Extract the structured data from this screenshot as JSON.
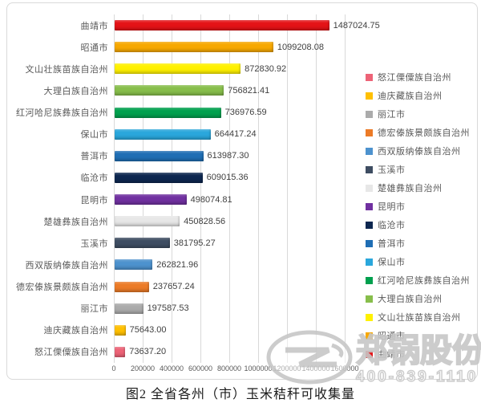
{
  "chart_data": {
    "type": "bar",
    "orientation": "horizontal",
    "title": "图2 全省各州（市）玉米秸秆可收集量",
    "categories": [
      "曲靖市",
      "昭通市",
      "文山壮族苗族自治州",
      "大理白族自治州",
      "红河哈尼族彝族自治州",
      "保山市",
      "普洱市",
      "临沧市",
      "昆明市",
      "楚雄彝族自治州",
      "玉溪市",
      "西双版纳傣族自治州",
      "德宏傣族景颇族自治州",
      "丽江市",
      "迪庆藏族自治州",
      "怒江傈僳族自治州"
    ],
    "values": [
      1487024.75,
      1099208.08,
      872830.92,
      756821.41,
      736976.59,
      664417.24,
      613987.3,
      609015.36,
      498074.81,
      450828.56,
      381795.27,
      262821.96,
      237657.24,
      197587.53,
      75643.0,
      73637.2
    ],
    "value_labels": [
      "1487024.75",
      "1099208.08",
      "872830.92",
      "756821.41",
      "736976.59",
      "664417.24",
      "613987.30",
      "609015.36",
      "498074.81",
      "450828.56",
      "381795.27",
      "262821.96",
      "237657.24",
      "197587.53",
      "75643.00",
      "73637.20"
    ],
    "bar_colors": [
      "#E41317",
      "#F7A800",
      "#FFF100",
      "#87BE4B",
      "#00A04E",
      "#2AA7DC",
      "#1F6EB4",
      "#0D2750",
      "#7030A0",
      "#E7E7E7",
      "#3E4D62",
      "#4D92CE",
      "#EC7B27",
      "#ABABAB",
      "#FFC000",
      "#ED6377"
    ],
    "x_ticks": [
      "0",
      "200000",
      "400000",
      "600000",
      "800000",
      "1000000",
      "1200000",
      "1400000",
      "1600000"
    ],
    "xlim": [
      0,
      1600000
    ],
    "grid": "vertical",
    "legend_position": "right",
    "legend_labels": [
      "怒江傈僳族自治州",
      "迪庆藏族自治州",
      "丽江市",
      "德宏傣族景颇族自治州",
      "西双版纳傣族自治州",
      "玉溪市",
      "楚雄彝族自治州",
      "昆明市",
      "临沧市",
      "普洱市",
      "保山市",
      "红河哈尼族彝族自治州",
      "大理白族自治州",
      "文山壮族苗族自治州",
      "昭通市",
      "曲靖市"
    ]
  },
  "caption": "图2 全省各州（市）玉米秸秆可收集量",
  "watermark": {
    "company": "郑锅股份",
    "phone": "400-839-1110",
    "logo": "zhengguo-boiler-logo",
    "color": "#c7c7c7"
  }
}
